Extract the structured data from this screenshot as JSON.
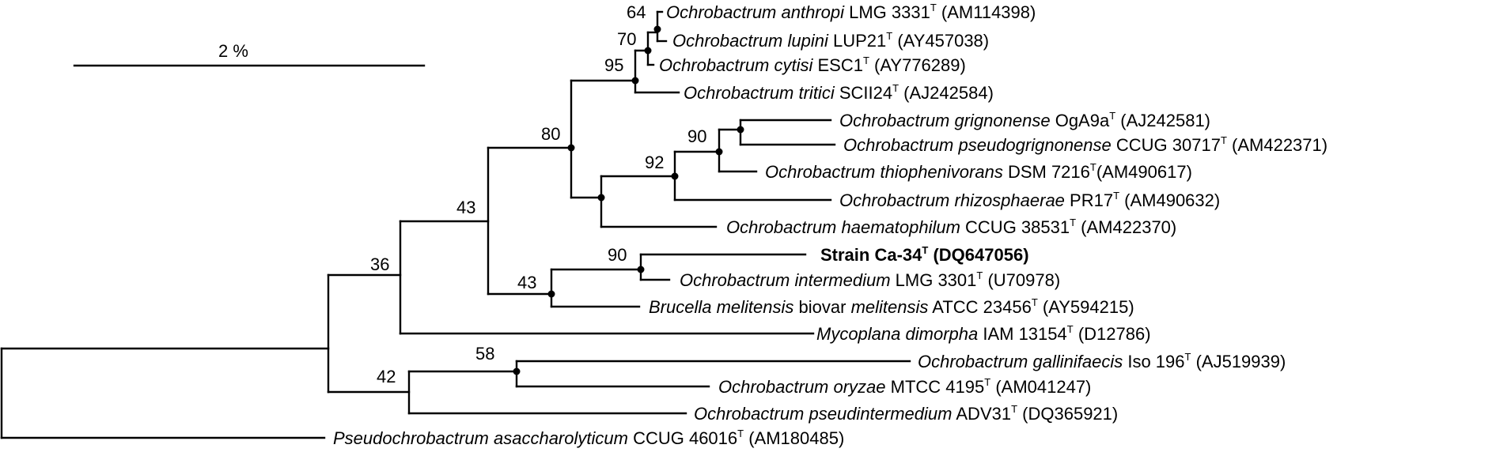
{
  "scale_bar": {
    "label": "2 %"
  },
  "taxa": [
    {
      "id": "anthropi",
      "parts": [
        {
          "t": "Ochrobactrum anthropi",
          "i": true
        },
        {
          "t": " LMG 3331"
        },
        {
          "t": "T",
          "s": true
        },
        {
          "t": " (AM114398)"
        }
      ]
    },
    {
      "id": "lupini",
      "parts": [
        {
          "t": "Ochrobactrum lupini",
          "i": true
        },
        {
          "t": " LUP21"
        },
        {
          "t": "T",
          "s": true
        },
        {
          "t": " (AY457038)"
        }
      ]
    },
    {
      "id": "cytisi",
      "parts": [
        {
          "t": "Ochrobactrum cytisi",
          "i": true
        },
        {
          "t": " ESC1"
        },
        {
          "t": "T",
          "s": true
        },
        {
          "t": " (AY776289)"
        }
      ]
    },
    {
      "id": "tritici",
      "parts": [
        {
          "t": "Ochrobactrum tritici",
          "i": true
        },
        {
          "t": " SCII24"
        },
        {
          "t": "T",
          "s": true
        },
        {
          "t": " (AJ242584)"
        }
      ]
    },
    {
      "id": "grignonense",
      "parts": [
        {
          "t": "Ochrobactrum grignonense",
          "i": true
        },
        {
          "t": " OgA9a"
        },
        {
          "t": "T",
          "s": true
        },
        {
          "t": " (AJ242581)"
        }
      ]
    },
    {
      "id": "pseudogrignonense",
      "parts": [
        {
          "t": "Ochrobactrum pseudogrignonense",
          "i": true
        },
        {
          "t": " CCUG 30717"
        },
        {
          "t": "T",
          "s": true
        },
        {
          "t": " (AM422371)"
        }
      ]
    },
    {
      "id": "thiophenivorans",
      "parts": [
        {
          "t": "Ochrobactrum thiophenivorans",
          "i": true
        },
        {
          "t": " DSM 7216"
        },
        {
          "t": "T",
          "s": true
        },
        {
          "t": "(AM490617)"
        }
      ]
    },
    {
      "id": "rhizosphaerae",
      "parts": [
        {
          "t": "Ochrobactrum rhizosphaerae",
          "i": true
        },
        {
          "t": " PR17"
        },
        {
          "t": "T",
          "s": true
        },
        {
          "t": " (AM490632)"
        }
      ]
    },
    {
      "id": "haematophilum",
      "parts": [
        {
          "t": "Ochrobactrum haematophilum",
          "i": true
        },
        {
          "t": " CCUG 38531"
        },
        {
          "t": "T",
          "s": true
        },
        {
          "t": " (AM422370)"
        }
      ]
    },
    {
      "id": "strain-ca34",
      "bold": true,
      "parts": [
        {
          "t": "Strain Ca-34"
        },
        {
          "t": "T",
          "s": true
        },
        {
          "t": " (DQ647056)"
        }
      ]
    },
    {
      "id": "intermedium",
      "parts": [
        {
          "t": "Ochrobactrum intermedium",
          "i": true
        },
        {
          "t": " LMG 3301"
        },
        {
          "t": "T",
          "s": true
        },
        {
          "t": " (U70978)"
        }
      ]
    },
    {
      "id": "brucella",
      "parts": [
        {
          "t": "Brucella melitensis",
          "i": true
        },
        {
          "t": " biovar "
        },
        {
          "t": "melitensis",
          "i": true
        },
        {
          "t": " ATCC 23456"
        },
        {
          "t": "T",
          "s": true
        },
        {
          "t": " (AY594215)"
        }
      ]
    },
    {
      "id": "mycoplana",
      "parts": [
        {
          "t": "Mycoplana dimorpha",
          "i": true
        },
        {
          "t": " IAM 13154"
        },
        {
          "t": "T",
          "s": true
        },
        {
          "t": " (D12786)"
        }
      ]
    },
    {
      "id": "gallinifaecis",
      "parts": [
        {
          "t": "Ochrobactrum gallinifaecis",
          "i": true
        },
        {
          "t": " Iso 196"
        },
        {
          "t": "T",
          "s": true
        },
        {
          "t": " (AJ519939)"
        }
      ]
    },
    {
      "id": "oryzae",
      "parts": [
        {
          "t": "Ochrobactrum oryzae",
          "i": true
        },
        {
          "t": " MTCC 4195"
        },
        {
          "t": "T",
          "s": true
        },
        {
          "t": " (AM041247)"
        }
      ]
    },
    {
      "id": "pseudintermedium",
      "parts": [
        {
          "t": "Ochrobactrum pseudintermedium",
          "i": true
        },
        {
          "t": " ADV31"
        },
        {
          "t": "T",
          "s": true
        },
        {
          "t": " (DQ365921)"
        }
      ]
    },
    {
      "id": "pseudochrobactrum",
      "parts": [
        {
          "t": "Pseudochrobactrum asaccharolyticum",
          "i": true
        },
        {
          "t": " CCUG 46016"
        },
        {
          "t": "T",
          "s": true
        },
        {
          "t": " (AM180485)"
        }
      ]
    }
  ],
  "bootstrap": {
    "n64": "64",
    "n70": "70",
    "n95": "95",
    "n80": "80",
    "n90a": "90",
    "n92": "92",
    "n43a": "43",
    "n36": "36",
    "n90b": "90",
    "n43b": "43",
    "n58": "58",
    "n42": "42"
  }
}
